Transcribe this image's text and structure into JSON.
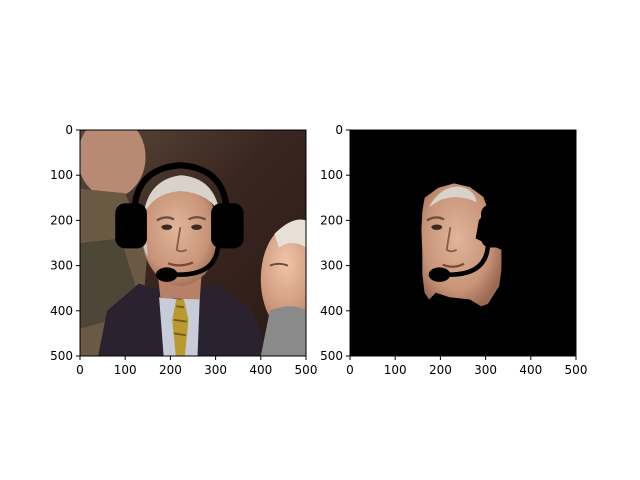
{
  "figure": {
    "background": "#ffffff"
  },
  "chart_data": [
    {
      "type": "image",
      "content": "photo of an older man in a suit and yellow tie, with a drawn black headset overlay",
      "xlim": [
        0,
        500
      ],
      "ylim": [
        500,
        0
      ],
      "xticks": [
        0,
        100,
        200,
        300,
        400,
        500
      ],
      "yticks": [
        0,
        100,
        200,
        300,
        400,
        500
      ],
      "tick_labels_x": [
        "0",
        "100",
        "200",
        "300",
        "400",
        "500"
      ],
      "tick_labels_y": [
        "0",
        "100",
        "200",
        "300",
        "400",
        "500"
      ],
      "title": "",
      "xlabel": "",
      "ylabel": "",
      "overlay": {
        "type": "headset",
        "color": "#000000",
        "band": {
          "cx": 222,
          "cy": 155,
          "rx": 102,
          "ry": 80
        },
        "earcups": [
          {
            "x": 75,
            "y": 165,
            "w": 70,
            "h": 95
          },
          {
            "x": 290,
            "y": 165,
            "w": 70,
            "h": 95
          }
        ],
        "boom": [
          [
            305,
            255
          ],
          [
            280,
            320
          ],
          [
            215,
            318
          ],
          [
            195,
            318
          ]
        ],
        "mic": {
          "cx": 195,
          "cy": 318,
          "rx": 22,
          "ry": 14
        }
      }
    },
    {
      "type": "image",
      "content": "segmentation mask: face region visible on black background, occluded by headset",
      "xlim": [
        0,
        500
      ],
      "ylim": [
        500,
        0
      ],
      "xticks": [
        0,
        100,
        200,
        300,
        400,
        500
      ],
      "yticks": [
        0,
        100,
        200,
        300,
        400,
        500
      ],
      "tick_labels_x": [
        "0",
        "100",
        "200",
        "300",
        "400",
        "500"
      ],
      "tick_labels_y": [
        "0",
        "100",
        "200",
        "300",
        "400",
        "500"
      ],
      "title": "",
      "xlabel": "",
      "ylabel": "",
      "background_color": "#000000",
      "face_region": [
        [
          165,
          150
        ],
        [
          195,
          128
        ],
        [
          230,
          118
        ],
        [
          265,
          126
        ],
        [
          295,
          148
        ],
        [
          305,
          175
        ],
        [
          285,
          200
        ],
        [
          278,
          240
        ],
        [
          300,
          250
        ],
        [
          335,
          265
        ],
        [
          335,
          310
        ],
        [
          330,
          345
        ],
        [
          305,
          385
        ],
        [
          290,
          390
        ],
        [
          265,
          375
        ],
        [
          220,
          370
        ],
        [
          190,
          360
        ],
        [
          175,
          375
        ],
        [
          165,
          360
        ],
        [
          160,
          320
        ],
        [
          160,
          270
        ],
        [
          158,
          220
        ],
        [
          160,
          180
        ]
      ]
    }
  ]
}
